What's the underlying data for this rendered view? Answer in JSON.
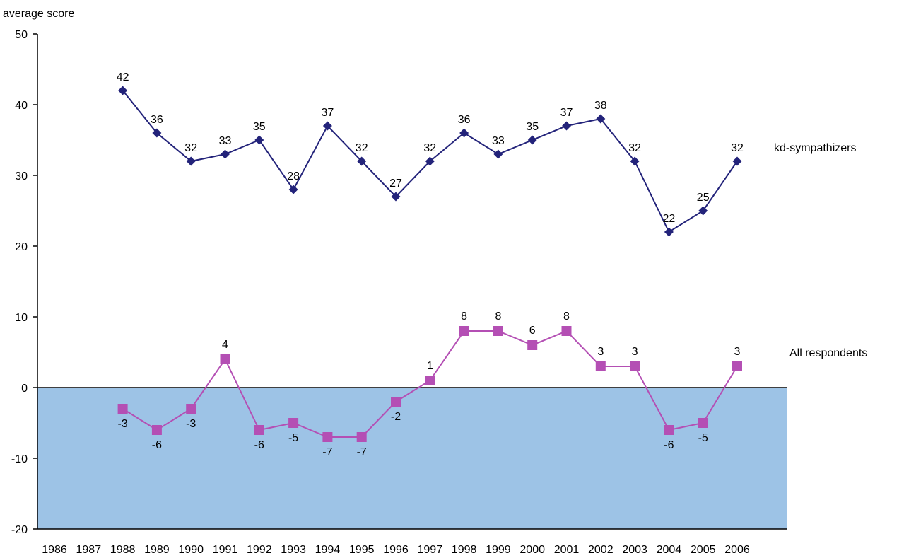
{
  "chart_data": {
    "type": "line",
    "ylabel": "average score",
    "xlabel": "",
    "ylim": [
      -20,
      50
    ],
    "yticks": [
      50,
      40,
      30,
      20,
      10,
      0,
      -10,
      -20
    ],
    "categories": [
      "1986",
      "1987",
      "1988",
      "1989",
      "1990",
      "1991",
      "1992",
      "1993",
      "1994",
      "1995",
      "1996",
      "1997",
      "1998",
      "1999",
      "2000",
      "2001",
      "2002",
      "2003",
      "2004",
      "2005",
      "2006"
    ],
    "grid": false,
    "legend": "none (series labelled at right)",
    "shaded_region": {
      "from": -20,
      "to": 0,
      "color": "#9dc3e6"
    },
    "series": [
      {
        "name": "kd-sympathizers",
        "marker": "diamond",
        "color": "#23237a",
        "values": [
          null,
          null,
          42,
          36,
          32,
          33,
          35,
          28,
          37,
          32,
          27,
          32,
          36,
          33,
          35,
          37,
          38,
          32,
          22,
          25,
          32
        ]
      },
      {
        "name": "All respondents",
        "marker": "square",
        "color": "#b44fb4",
        "values": [
          null,
          null,
          -3,
          -6,
          -3,
          4,
          -6,
          -5,
          -7,
          -7,
          -2,
          1,
          8,
          8,
          6,
          8,
          3,
          3,
          -6,
          -5,
          3
        ]
      }
    ]
  }
}
